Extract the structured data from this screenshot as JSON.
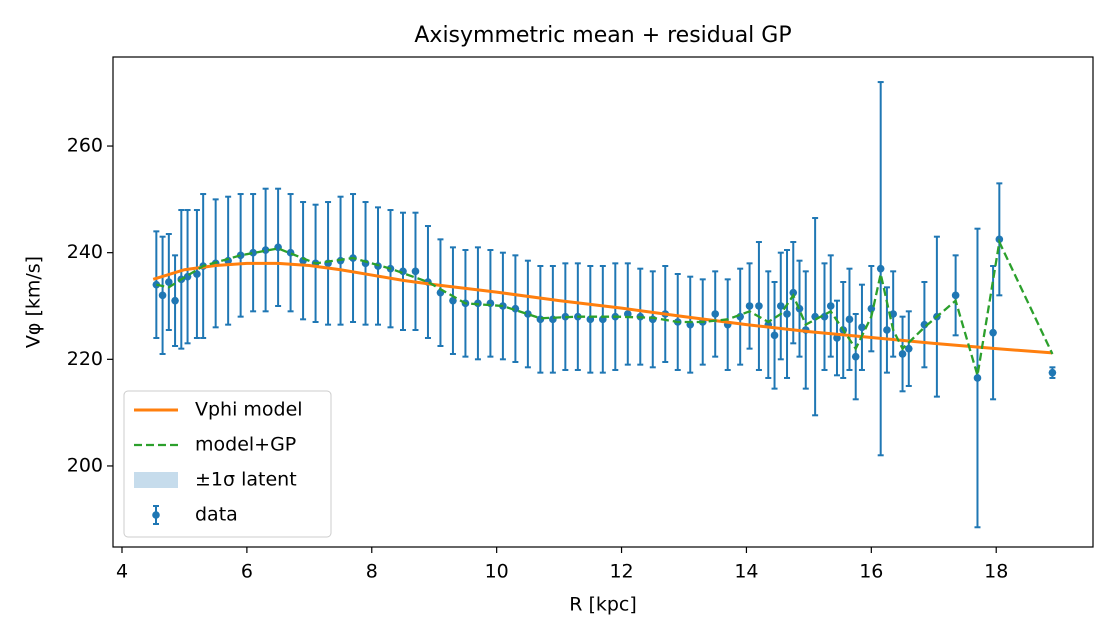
{
  "chart_data": {
    "type": "errorbar",
    "title": "Axisymmetric mean + residual GP",
    "x_label": "R [kpc]",
    "y_label": "Vφ [km/s]",
    "xlim": [
      3.856,
      19.55
    ],
    "ylim": [
      184.8,
      276.7
    ],
    "xticks": [
      4,
      6,
      8,
      10,
      12,
      14,
      16,
      18
    ],
    "yticks": [
      200,
      220,
      240,
      260
    ],
    "legend": "lower left",
    "series": [
      {
        "name": "Vphi model",
        "type": "line",
        "color": "#ff7f0e",
        "x": [
          4.5,
          5,
          5.5,
          6,
          6.5,
          7,
          7.5,
          8,
          8.5,
          9,
          9.5,
          10,
          11,
          12,
          13,
          14,
          15,
          16,
          17,
          18,
          18.9
        ],
        "values": [
          235,
          236.8,
          237.6,
          238,
          238,
          237.6,
          236.8,
          235.8,
          234.8,
          234,
          233.3,
          232.6,
          231,
          229.6,
          228,
          226.5,
          225.2,
          224.1,
          223,
          222,
          221.2
        ]
      },
      {
        "name": "model+GP",
        "type": "dashed",
        "color": "#2ca02c",
        "x": [
          4.55,
          4.75,
          4.95,
          5.3,
          5.9,
          6.5,
          7.1,
          7.7,
          8.3,
          8.9,
          9.5,
          10.1,
          10.7,
          11.3,
          11.9,
          12.5,
          12.9,
          13.3,
          13.7,
          14.05,
          14.35,
          14.55,
          14.75,
          14.95,
          15.35,
          15.55,
          15.75,
          16,
          16.15,
          16.35,
          16.5,
          16.85,
          17.35,
          17.7,
          18.05,
          18.9
        ],
        "values": [
          234,
          233.5,
          235,
          237.5,
          239.5,
          240.8,
          238,
          239,
          237,
          234.5,
          230.5,
          230,
          227.7,
          228,
          228,
          227.8,
          227,
          227,
          227.5,
          229,
          227,
          228.5,
          232,
          226.5,
          229,
          225.5,
          222,
          228,
          236,
          225.5,
          222,
          226,
          231,
          217,
          242,
          221
        ]
      },
      {
        "name": "±1σ latent",
        "type": "band",
        "color": "#c6dcec"
      },
      {
        "name": "data",
        "type": "errorbar",
        "color": "#1f77b4",
        "x": [
          4.55,
          4.65,
          4.75,
          4.85,
          4.95,
          5.05,
          5.2,
          5.3,
          5.5,
          5.7,
          5.9,
          6.1,
          6.3,
          6.5,
          6.7,
          6.9,
          7.1,
          7.3,
          7.5,
          7.7,
          7.9,
          8.1,
          8.3,
          8.5,
          8.7,
          8.9,
          9.1,
          9.3,
          9.5,
          9.7,
          9.9,
          10.1,
          10.3,
          10.5,
          10.7,
          10.9,
          11.1,
          11.3,
          11.5,
          11.7,
          11.9,
          12.1,
          12.3,
          12.5,
          12.7,
          12.9,
          13.1,
          13.3,
          13.5,
          13.7,
          13.9,
          14.05,
          14.2,
          14.35,
          14.45,
          14.55,
          14.65,
          14.75,
          14.85,
          14.95,
          15.1,
          15.25,
          15.35,
          15.45,
          15.55,
          15.65,
          15.75,
          15.85,
          16,
          16.15,
          16.25,
          16.35,
          16.5,
          16.6,
          16.85,
          17.05,
          17.35,
          17.7,
          17.95,
          18.05,
          18.9
        ],
        "values": [
          234,
          232,
          234.5,
          231,
          235,
          235.5,
          236,
          237.5,
          238,
          238.5,
          239.5,
          240,
          240.5,
          241,
          240,
          238.5,
          238,
          238,
          238.5,
          239,
          238,
          237.5,
          237,
          236.5,
          236.5,
          234.5,
          232.5,
          231,
          230.5,
          230.5,
          230.5,
          230,
          229.5,
          228.5,
          227.5,
          227.5,
          228,
          228,
          227.5,
          227.5,
          228,
          228.5,
          228,
          227.5,
          228.5,
          227,
          226.5,
          227,
          228.5,
          226.5,
          228,
          230,
          230,
          226.5,
          224.5,
          230,
          228.5,
          232.5,
          229.5,
          225.5,
          228,
          228,
          230,
          224,
          225.5,
          227.5,
          220.5,
          226,
          229.5,
          237,
          225.5,
          228.5,
          221,
          222,
          226.5,
          228,
          232,
          216.5,
          225,
          242.5,
          217.5
        ],
        "errors": [
          10,
          11,
          9,
          8.5,
          13,
          12.5,
          12,
          13.5,
          12,
          12,
          11.5,
          11,
          11.5,
          11,
          11,
          11,
          11,
          11.5,
          12,
          12,
          11.5,
          11,
          11,
          11,
          11,
          10.5,
          10,
          10,
          10,
          10.5,
          10,
          10,
          10,
          10,
          10,
          10,
          10,
          10,
          10,
          10,
          10,
          9.5,
          9,
          9,
          9,
          9,
          9,
          8,
          8,
          8.5,
          9,
          8,
          12,
          10,
          10,
          10,
          12,
          9.5,
          9,
          11,
          18.5,
          10,
          9.5,
          7,
          9,
          9.5,
          8,
          8,
          8,
          35,
          8,
          8,
          7,
          7,
          8,
          15,
          7.5,
          28,
          12.5,
          10.5,
          1
        ]
      }
    ]
  }
}
